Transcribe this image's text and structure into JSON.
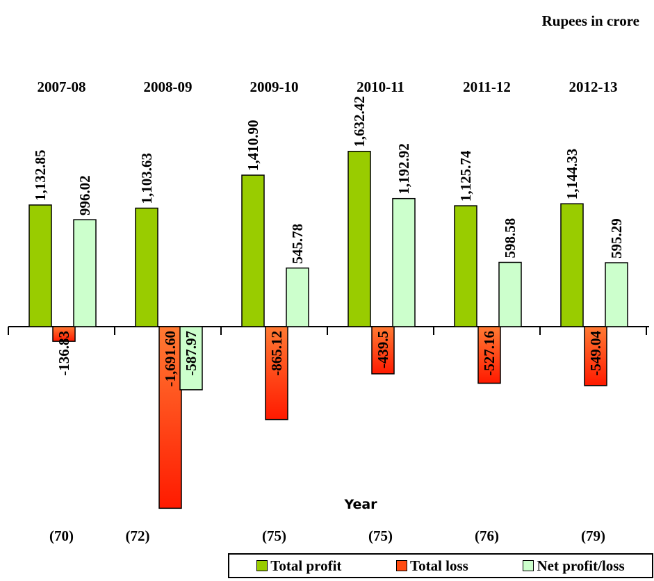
{
  "chart_data": {
    "type": "bar",
    "unit_note": "Rupees in crore",
    "xlabel": "Year",
    "categories": [
      "2007-08",
      "2008-09",
      "2009-10",
      "2010-11",
      "2011-12",
      "2012-13"
    ],
    "category_counts": [
      "(70)",
      "(72)",
      "(75)",
      "(75)",
      "(76)",
      "(79)"
    ],
    "series": [
      {
        "name": "Total profit",
        "color": "#99cc00",
        "values": [
          1132.85,
          1103.63,
          1410.9,
          1632.42,
          1125.74,
          1144.33
        ],
        "labels": [
          "1,132.85",
          "1,103.63",
          "1,410.90",
          "1,632.42",
          "1,125.74",
          "1,144.33"
        ]
      },
      {
        "name": "Total loss",
        "color": "#ff5a1f",
        "values": [
          -136.83,
          -1691.6,
          -865.12,
          -439.5,
          -527.16,
          -549.04
        ],
        "labels": [
          "-136.83",
          "-1,691.60",
          "-865.12",
          "-439.5",
          "-527.16",
          "-549.04"
        ]
      },
      {
        "name": "Net profit/loss",
        "color": "#ccffcc",
        "values": [
          996.02,
          -587.97,
          545.78,
          1192.92,
          598.58,
          595.29
        ],
        "labels": [
          "996.02",
          "-587.97",
          "545.78",
          "1,192.92",
          "598.58",
          "595.29"
        ]
      }
    ],
    "legend_position": "bottom-right",
    "grid": false
  }
}
